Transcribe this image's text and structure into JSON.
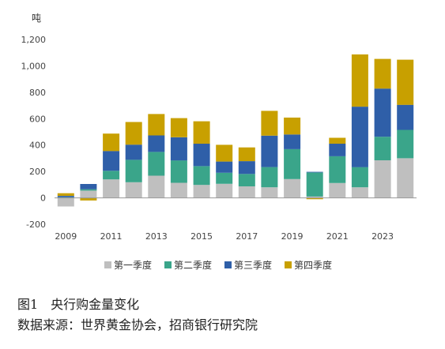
{
  "chart_data": {
    "type": "bar",
    "stacked": true,
    "unit_label": "吨",
    "x_tick_labels": [
      "2009",
      "2011",
      "2013",
      "2015",
      "2017",
      "2019",
      "2021",
      "2023"
    ],
    "categories": [
      "2009",
      "2010",
      "2011",
      "2012",
      "2013",
      "2014",
      "2015",
      "2016",
      "2017",
      "2018",
      "2019",
      "2020",
      "2021",
      "2022",
      "2023",
      "2024"
    ],
    "series": [
      {
        "name": "第一季度",
        "color": "#bfbfbf",
        "values": [
          -65,
          55,
          140,
          118,
          168,
          114,
          98,
          106,
          87,
          80,
          142,
          10,
          112,
          80,
          285,
          300
        ]
      },
      {
        "name": "第二季度",
        "color": "#3aa58a",
        "values": [
          5,
          10,
          65,
          170,
          180,
          170,
          142,
          84,
          94,
          153,
          227,
          182,
          203,
          153,
          178,
          215
        ]
      },
      {
        "name": "第三季度",
        "color": "#2f5fa8",
        "values": [
          10,
          40,
          150,
          115,
          125,
          175,
          170,
          85,
          97,
          238,
          111,
          5,
          95,
          458,
          365,
          190
        ]
      },
      {
        "name": "第四季度",
        "color": "#c8a000",
        "values": [
          20,
          -20,
          132,
          172,
          162,
          145,
          170,
          127,
          104,
          188,
          128,
          -10,
          45,
          396,
          225,
          342
        ]
      }
    ],
    "ylim": [
      -200,
      1200
    ],
    "yticks": [
      -200,
      0,
      200,
      400,
      600,
      800,
      1000,
      1200
    ],
    "ytick_labels": [
      "-200",
      "0",
      "200",
      "400",
      "600",
      "800",
      "1,000",
      "1,200"
    ],
    "grid": false,
    "legend_position": "bottom"
  },
  "caption": {
    "title": "图1　央行购金量变化",
    "source": "数据来源：世界黄金协会，招商银行研究院"
  }
}
